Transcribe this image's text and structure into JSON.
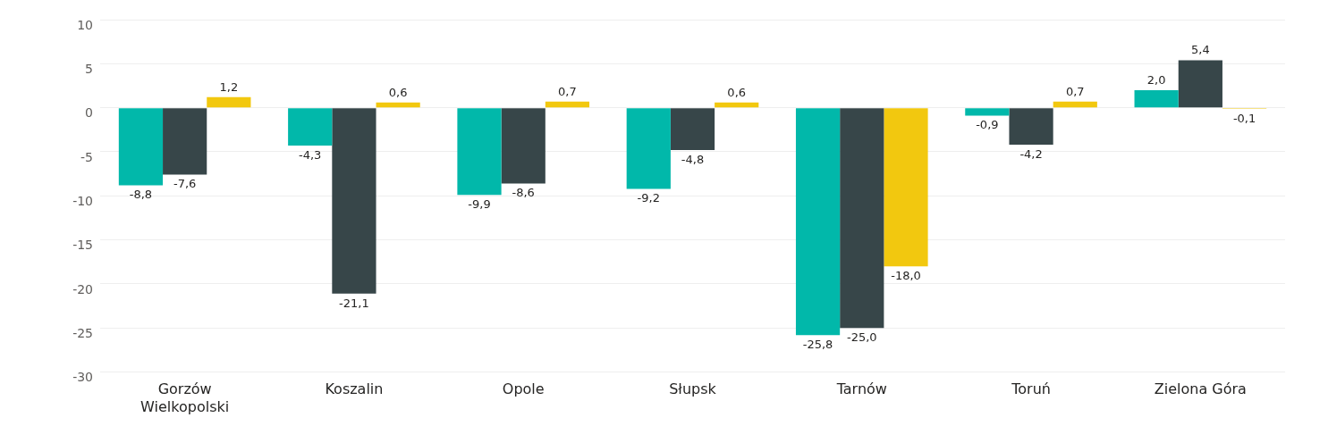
{
  "chart_data": {
    "type": "bar",
    "categories": [
      "Gorzów Wielkopolski",
      "Koszalin",
      "Opole",
      "Słupsk",
      "Tarnów",
      "Toruń",
      "Zielona Góra"
    ],
    "series": [
      {
        "color": "#01b8aa",
        "values": [
          -8.8,
          -4.3,
          -9.9,
          -9.2,
          -25.8,
          -0.9,
          2.0
        ],
        "value_labels": [
          "-8,8",
          "-4,3",
          "-9,9",
          "-9,2",
          "-25,8",
          "-0,9",
          "2,0"
        ]
      },
      {
        "color": "#374649",
        "values": [
          -7.6,
          -21.1,
          -8.6,
          -4.8,
          -25.0,
          -4.2,
          5.4
        ],
        "value_labels": [
          "-7,6",
          "-21,1",
          "-8,6",
          "-4,8",
          "-25,0",
          "-4,2",
          "5,4"
        ]
      },
      {
        "color": "#f2c80f",
        "values": [
          1.2,
          0.6,
          0.7,
          0.6,
          -18.0,
          0.7,
          -0.1
        ],
        "value_labels": [
          "1,2",
          "0,6",
          "0,7",
          "0,6",
          "-18,0",
          "0,7",
          "-0,1"
        ]
      }
    ],
    "ylim": [
      -30,
      10
    ],
    "yticks": [
      -30,
      -25,
      -20,
      -15,
      -10,
      -5,
      0,
      5,
      10
    ],
    "grid": "y",
    "legend": false
  }
}
